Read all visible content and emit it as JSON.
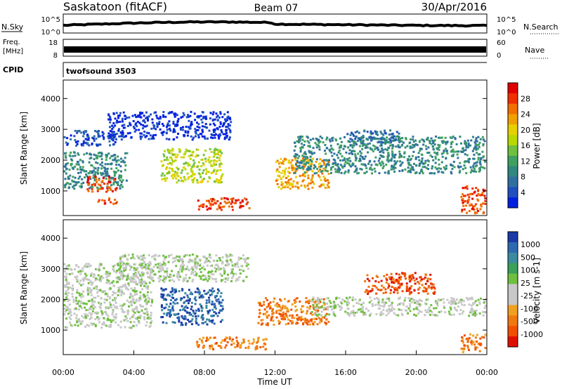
{
  "header": {
    "station": "Saskatoon (fitACF)",
    "beam": "Beam 07",
    "date": "30/Apr/2016"
  },
  "panels": {
    "nsky": {
      "left_label": "N.Sky",
      "left_ticks": [
        "10^5",
        "10^0"
      ],
      "right_ticks": [
        "10^5",
        "10^0"
      ],
      "right_label": "N.Search"
    },
    "freq": {
      "left_label_1": "Freq.",
      "left_label_2": "[MHz]",
      "left_ticks": [
        "18",
        "8"
      ],
      "right_ticks": [
        "60",
        "0"
      ],
      "right_label": "Nave"
    },
    "cpid": {
      "left_label": "CPID",
      "value": "twofsound 3503"
    }
  },
  "colorbars": {
    "power": {
      "label": "Power [dB]",
      "ticks": [
        "28",
        "24",
        "20",
        "16",
        "12",
        "8",
        "4"
      ],
      "colors": [
        "#e00000",
        "#f03000",
        "#f07000",
        "#f0a000",
        "#e8d000",
        "#b8d800",
        "#70c040",
        "#40a060",
        "#308880",
        "#3070a0",
        "#2050c0",
        "#0020e0"
      ]
    },
    "velocity": {
      "label": "Velocity [m s-1]",
      "ticks": [
        "1000",
        "500",
        "100",
        "25",
        "-25",
        "-100",
        "-500",
        "-1000"
      ],
      "colors": [
        "#1a3aa8",
        "#2d6ab0",
        "#3c8aa0",
        "#3aa05a",
        "#70c040",
        "#c8c8c8",
        "#c8c8c8",
        "#f0a020",
        "#f07810",
        "#f05000",
        "#e01000"
      ]
    }
  },
  "chart_data": [
    {
      "type": "heatmap",
      "name": "power",
      "ylabel": "Slant Range [km]",
      "yticks": [
        "1000",
        "2000",
        "3000",
        "4000"
      ],
      "ylim": [
        200,
        4600
      ],
      "xlim": [
        0,
        24
      ],
      "xticks": [
        "00:00",
        "04:00",
        "08:00",
        "12:00",
        "16:00",
        "20:00",
        "00:00"
      ],
      "bands": [
        {
          "t0": 0.0,
          "t1": 3.6,
          "r0": 1100,
          "r1": 2300,
          "level": 3
        },
        {
          "t0": 0.0,
          "t1": 3.0,
          "r0": 2500,
          "r1": 3000,
          "level": 1
        },
        {
          "t0": 1.3,
          "t1": 3.0,
          "r0": 1000,
          "r1": 1500,
          "level": 10
        },
        {
          "t0": 1.8,
          "t1": 3.0,
          "r0": 600,
          "r1": 800,
          "level": 10
        },
        {
          "t0": 2.5,
          "t1": 9.5,
          "r0": 2700,
          "r1": 3600,
          "level": 0
        },
        {
          "t0": 5.5,
          "t1": 9.0,
          "r0": 1300,
          "r1": 2400,
          "level": 6
        },
        {
          "t0": 7.5,
          "t1": 10.5,
          "r0": 400,
          "r1": 800,
          "level": 10
        },
        {
          "t0": 12.0,
          "t1": 15.0,
          "r0": 1100,
          "r1": 2100,
          "level": 8
        },
        {
          "t0": 13.0,
          "t1": 24.0,
          "r0": 1600,
          "r1": 2800,
          "level": 3
        },
        {
          "t0": 16.0,
          "t1": 19.0,
          "r0": 2600,
          "r1": 3000,
          "level": 2
        },
        {
          "t0": 22.5,
          "t1": 24.0,
          "r0": 300,
          "r1": 1200,
          "level": 10
        }
      ]
    },
    {
      "type": "heatmap",
      "name": "velocity",
      "xlabel": "Time UT",
      "ylabel": "Slant Range [km]",
      "yticks": [
        "1000",
        "2000",
        "3000",
        "4000"
      ],
      "ylim": [
        200,
        4600
      ],
      "xlim": [
        0,
        24
      ],
      "xticks": [
        "00:00",
        "04:00",
        "08:00",
        "12:00",
        "16:00",
        "20:00",
        "00:00"
      ],
      "bands": [
        {
          "t0": 0.0,
          "t1": 5.0,
          "r0": 1100,
          "r1": 2600,
          "level": 5
        },
        {
          "t0": 0.0,
          "t1": 5.0,
          "r0": 2600,
          "r1": 3200,
          "level": 5
        },
        {
          "t0": 3.0,
          "t1": 10.5,
          "r0": 2600,
          "r1": 3500,
          "level": 5
        },
        {
          "t0": 5.5,
          "t1": 9.0,
          "r0": 1200,
          "r1": 2400,
          "level": 1
        },
        {
          "t0": 7.5,
          "t1": 11.5,
          "r0": 400,
          "r1": 800,
          "level": 8
        },
        {
          "t0": 11.0,
          "t1": 15.0,
          "r0": 1200,
          "r1": 2100,
          "level": 8
        },
        {
          "t0": 17.0,
          "t1": 21.0,
          "r0": 2200,
          "r1": 2900,
          "level": 9
        },
        {
          "t0": 14.0,
          "t1": 24.0,
          "r0": 1500,
          "r1": 2100,
          "level": 5
        },
        {
          "t0": 22.5,
          "t1": 24.0,
          "r0": 300,
          "r1": 900,
          "level": 8
        }
      ]
    }
  ]
}
